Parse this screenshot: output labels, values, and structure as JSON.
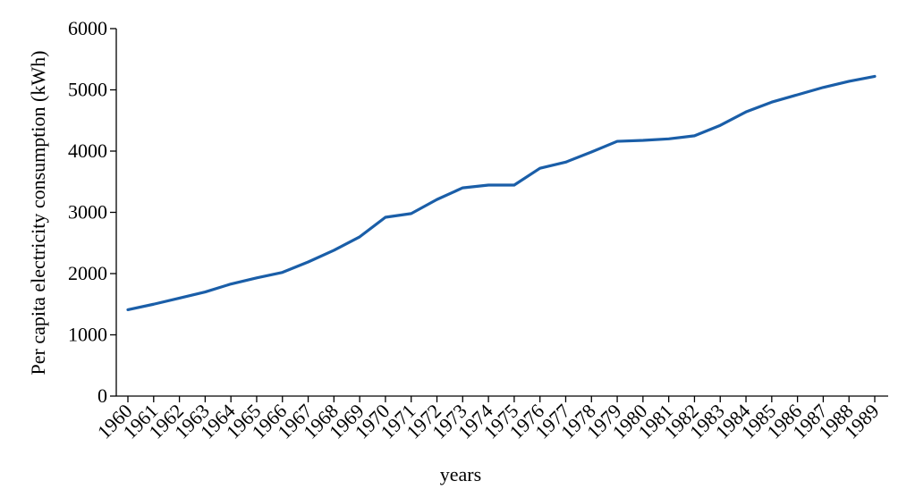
{
  "chart_data": {
    "type": "line",
    "y_label": "Per capita electricity consumption (kWh)",
    "x_label": "years",
    "categories": [
      "1960",
      "1961",
      "1962",
      "1963",
      "1964",
      "1965",
      "1966",
      "1967",
      "1968",
      "1969",
      "1970",
      "1971",
      "1972",
      "1973",
      "1974",
      "1975",
      "1976",
      "1977",
      "1978",
      "1979",
      "1980",
      "1981",
      "1982",
      "1983",
      "1984",
      "1985",
      "1986",
      "1987",
      "1988",
      "1989"
    ],
    "series": [
      {
        "name": "Per capita electricity consumption",
        "color": "#1a5ea8",
        "values": [
          1410,
          1500,
          1600,
          1700,
          1830,
          1930,
          2020,
          2190,
          2380,
          2600,
          2920,
          2980,
          3210,
          3400,
          3445,
          3445,
          3720,
          3820,
          3985,
          4160,
          4175,
          4200,
          4250,
          4420,
          4640,
          4800,
          4920,
          5040,
          5140,
          5220
        ]
      }
    ],
    "ylim": [
      0,
      6000
    ],
    "yticks": [
      0,
      1000,
      2000,
      3000,
      4000,
      5000,
      6000
    ],
    "grid": false
  }
}
